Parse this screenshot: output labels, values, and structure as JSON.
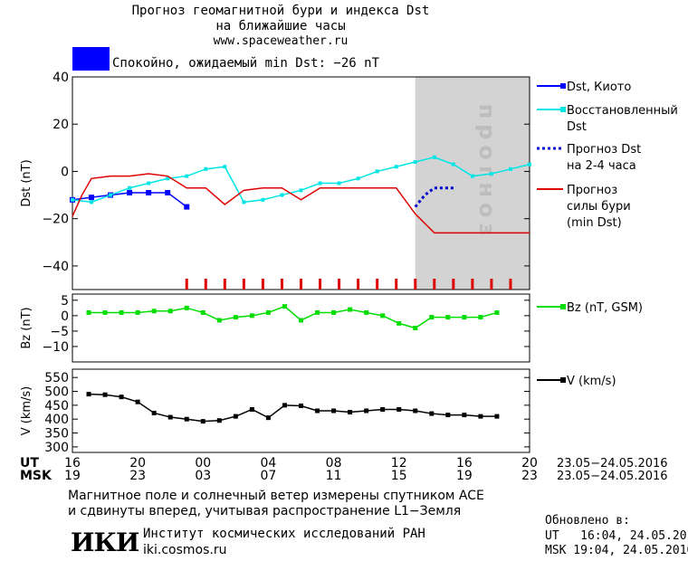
{
  "header": {
    "title_line1": "Прогноз геомагнитной бури и индекса Dst",
    "title_line2": "на ближайшие часы",
    "site": "www.spaceweather.ru",
    "status_text": "Спокойно, ожидаемый min Dst: −26 nT",
    "status_color": "#0000ff"
  },
  "chart_data": [
    {
      "type": "line",
      "ylabel": "Dst (nT)",
      "ylim": [
        -50,
        40
      ],
      "yticks": [
        40,
        20,
        0,
        -20,
        -40
      ],
      "x_unit": "hours from 16 UT 23.05.2016",
      "xlim": [
        0,
        24
      ],
      "forecast_band": {
        "label": "прогноз",
        "x_start": 18
      },
      "series": [
        {
          "name": "Dst, Киото",
          "color": "#0000ff",
          "marker": true,
          "x": [
            0,
            1,
            2,
            3,
            4,
            5,
            6
          ],
          "values": [
            -12,
            -11,
            -10,
            -9,
            -9,
            -9,
            -15
          ]
        },
        {
          "name": "Восстановленный Dst",
          "color": "#00e5e5",
          "marker": true,
          "x": [
            0,
            1,
            2,
            3,
            4,
            5,
            6,
            7,
            8,
            9,
            10,
            11,
            12,
            13,
            14,
            15,
            16,
            17,
            18,
            19,
            20,
            21,
            22,
            23,
            24
          ],
          "values": [
            -12,
            -13,
            -10,
            -7,
            -5,
            -3,
            -2,
            1,
            2,
            -13,
            -12,
            -10,
            -8,
            -5,
            -5,
            -3,
            0,
            2,
            4,
            6,
            3,
            -2,
            -1,
            1,
            3
          ]
        },
        {
          "name": "Прогноз Dst на 2-4 часа",
          "color": "#0000cc",
          "dashed": true,
          "x": [
            18,
            18.5,
            19,
            19.5,
            20
          ],
          "values": [
            -15,
            -10,
            -7,
            -7,
            -7
          ]
        },
        {
          "name": "Прогноз силы бури (min Dst)",
          "color": "#dd0000",
          "marker": false,
          "x": [
            0,
            0.5,
            1,
            2,
            3,
            4,
            5,
            6,
            7,
            8,
            9,
            10,
            11,
            12,
            13,
            14,
            15,
            16,
            17,
            18,
            19,
            20,
            21,
            22,
            23,
            24
          ],
          "values": [
            -19,
            -10,
            -3,
            -2,
            -2,
            -1,
            -2,
            -7,
            -7,
            -14,
            -8,
            -7,
            -7,
            -12,
            -7,
            -7,
            -7,
            -7,
            -7,
            -18,
            -26,
            -26,
            -26,
            -26,
            -26,
            -26
          ]
        }
      ],
      "red_ticks_x": [
        6,
        7,
        8,
        9,
        10,
        11,
        12,
        13,
        14,
        15,
        16,
        17,
        18,
        19,
        20,
        21,
        22,
        23
      ]
    },
    {
      "type": "line",
      "ylabel": "Bz (nT)",
      "ylim": [
        -15,
        7
      ],
      "yticks": [
        5,
        0,
        -5,
        -10
      ],
      "series": [
        {
          "name": "Bz (nT, GSM)",
          "color": "#00dd00",
          "x": [
            1,
            2,
            3,
            4,
            5,
            6,
            7,
            8,
            9,
            10,
            11,
            12,
            13,
            14,
            15,
            16,
            17,
            18,
            19,
            20,
            21,
            22,
            23,
            24,
            25,
            26
          ],
          "values": [
            1,
            1,
            1,
            1,
            1.5,
            1.5,
            2.5,
            1,
            -1.5,
            -0.5,
            0,
            1,
            3,
            -1.5,
            1,
            1,
            2,
            1,
            0,
            -2.5,
            -4,
            -0.5,
            -0.5,
            -0.5,
            -0.5,
            1
          ]
        }
      ]
    },
    {
      "type": "line",
      "ylabel": "V (km/s)",
      "ylim": [
        280,
        580
      ],
      "yticks": [
        550,
        500,
        450,
        400,
        350,
        300
      ],
      "series": [
        {
          "name": "V (km/s)",
          "color": "#000000",
          "x": [
            1,
            2,
            3,
            4,
            5,
            6,
            7,
            8,
            9,
            10,
            11,
            12,
            13,
            14,
            15,
            16,
            17,
            18,
            19,
            20,
            21,
            22,
            23,
            24,
            25,
            26
          ],
          "values": [
            490,
            488,
            480,
            462,
            422,
            407,
            400,
            392,
            395,
            410,
            435,
            405,
            450,
            448,
            430,
            430,
            425,
            430,
            435,
            435,
            430,
            420,
            415,
            415,
            410,
            410
          ]
        }
      ]
    }
  ],
  "x_axis": {
    "ut_label": "UT",
    "msk_label": "MSK",
    "ut_ticks": [
      "16",
      "20",
      "00",
      "04",
      "08",
      "12",
      "16",
      "20"
    ],
    "msk_ticks": [
      "19",
      "23",
      "03",
      "07",
      "11",
      "15",
      "19",
      "23"
    ],
    "date_range": "23.05−24.05.2016"
  },
  "footer": {
    "note_line1": "Магнитное поле и солнечный ветер измерены спутником ACE",
    "note_line2": "и сдвинуты вперед, учитывая распространение L1−Земля",
    "logo_text": "ИКИ",
    "institute": "Институт космических исследований РАН",
    "institute_url": "iki.cosmos.ru",
    "updated_label": "Обновлено в:",
    "updated_ut": "UT   16:04, 24.05.2016",
    "updated_msk": "MSK 19:04, 24.05.2016"
  }
}
